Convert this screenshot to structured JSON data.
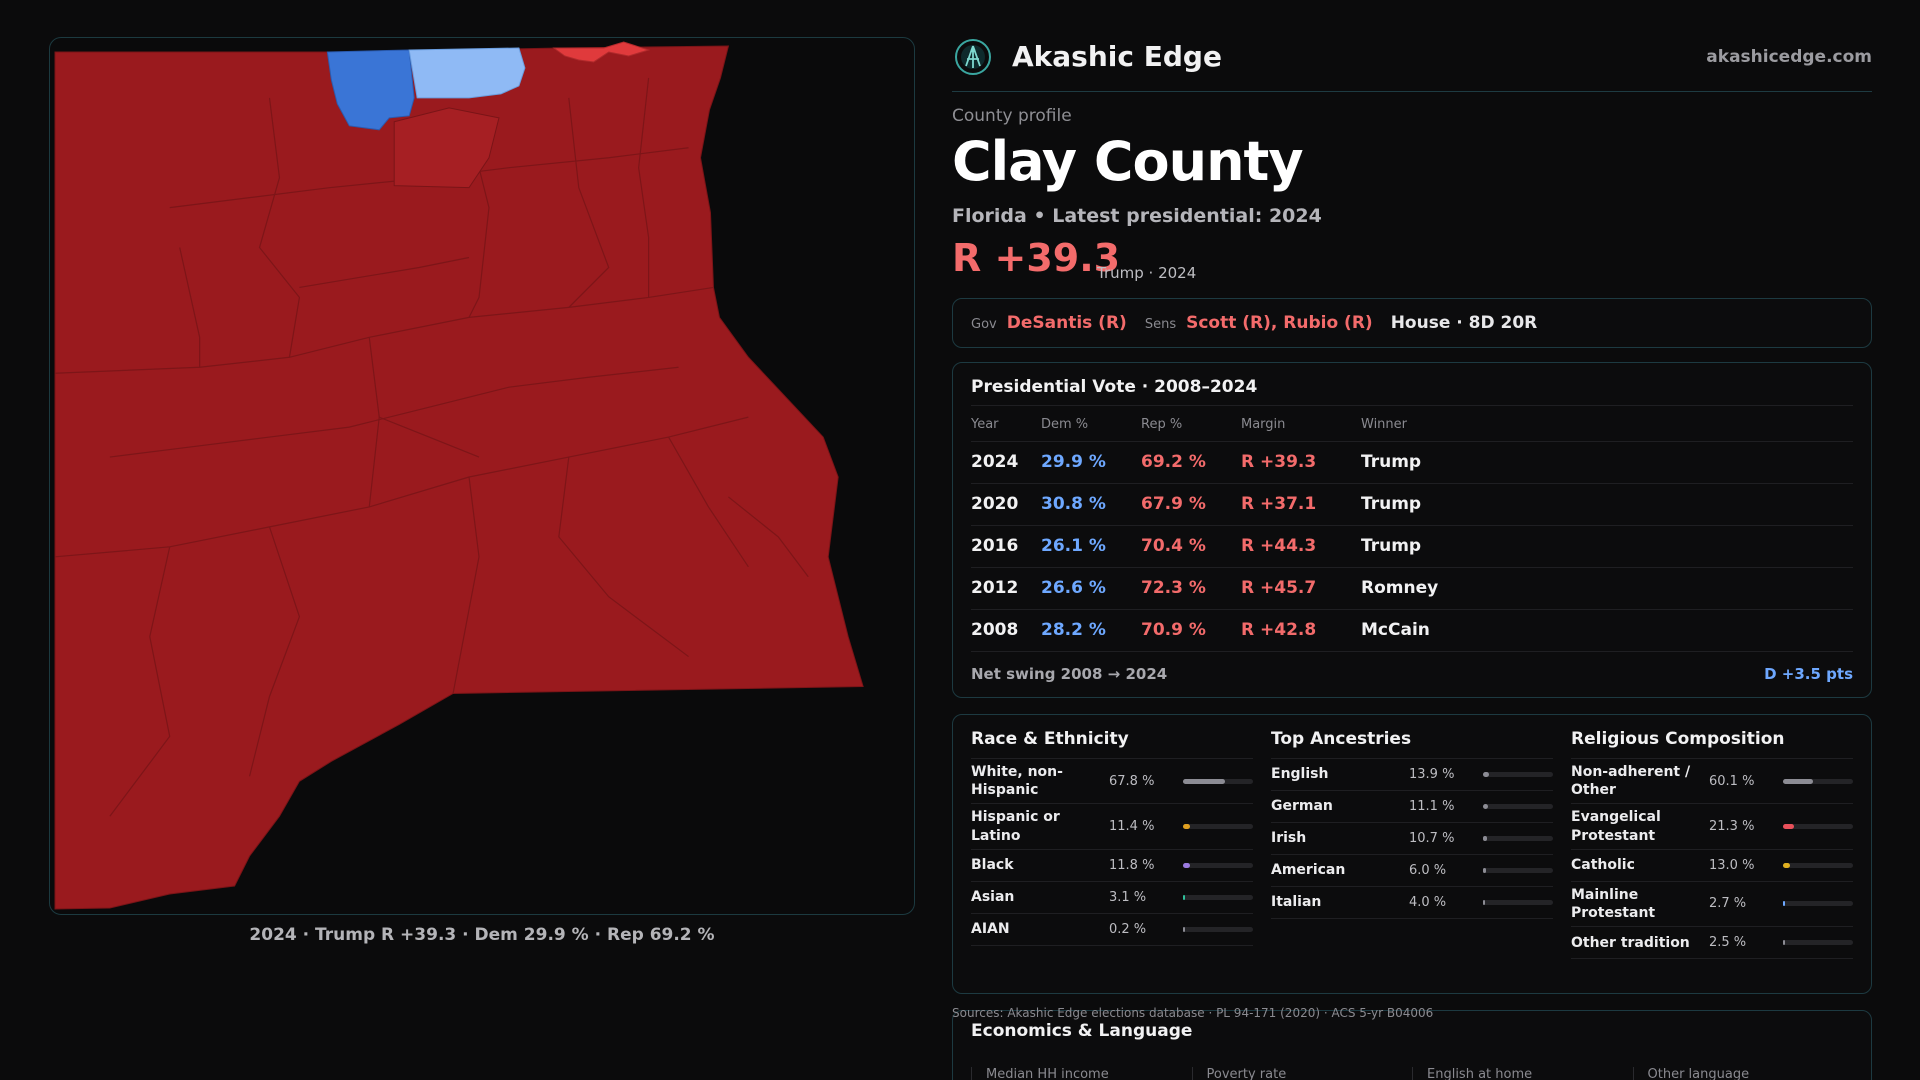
{
  "map": {
    "caption": "2024 · Trump R +39.3 · Dem 29.9 % · Rep 69.2 %",
    "colors": {
      "rep": "#9a1a1e",
      "rep_mid": "#a61f23",
      "rep_light": "#e03a3c",
      "dem": "#3a75d6",
      "dem_light": "#8fbaf5",
      "border": "#7a1417"
    }
  },
  "header": {
    "brand": "Akashic Edge",
    "site": "akashicedge.com"
  },
  "profile": {
    "eyebrow": "County profile",
    "title": "Clay County",
    "subtitle": "Florida • Latest presidential: 2024",
    "margin": "R +39.3",
    "margin_note": "Trump · 2024"
  },
  "officials": {
    "gov_label": "Gov",
    "gov": "DeSantis (R)",
    "sens_label": "Sens",
    "sens": "Scott (R), Rubio (R)",
    "house": "House · 8D 20R"
  },
  "votes": {
    "title": "Presidential Vote · 2008–2024",
    "headers": [
      "Year",
      "Dem %",
      "Rep %",
      "Margin",
      "Winner"
    ],
    "rows": [
      {
        "year": "2024",
        "dem": "29.9 %",
        "rep": "69.2 %",
        "margin": "R +39.3",
        "winner": "Trump"
      },
      {
        "year": "2020",
        "dem": "30.8 %",
        "rep": "67.9 %",
        "margin": "R +37.1",
        "winner": "Trump"
      },
      {
        "year": "2016",
        "dem": "26.1 %",
        "rep": "70.4 %",
        "margin": "R +44.3",
        "winner": "Trump"
      },
      {
        "year": "2012",
        "dem": "26.6 %",
        "rep": "72.3 %",
        "margin": "R +45.7",
        "winner": "Romney"
      },
      {
        "year": "2008",
        "dem": "28.2 %",
        "rep": "70.9 %",
        "margin": "R +42.8",
        "winner": "McCain"
      }
    ],
    "swing_label": "Net swing 2008 → 2024",
    "swing_value": "D +3.5 pts"
  },
  "race": {
    "title": "Race & Ethnicity",
    "items": [
      {
        "name": "White, non-Hispanic",
        "pct": "67.8 %",
        "value": 67.8,
        "color": "#8c8c94"
      },
      {
        "name": "Hispanic or Latino",
        "pct": "11.4 %",
        "value": 11.4,
        "color": "#e0a020"
      },
      {
        "name": "Black",
        "pct": "11.8 %",
        "value": 11.8,
        "color": "#9b7be0"
      },
      {
        "name": "Asian",
        "pct": "3.1 %",
        "value": 3.1,
        "color": "#2fbf9a"
      },
      {
        "name": "AIAN",
        "pct": "0.2 %",
        "value": 0.2,
        "color": "#8c8c94"
      }
    ]
  },
  "ancestry": {
    "title": "Top Ancestries",
    "items": [
      {
        "name": "English",
        "pct": "13.9 %",
        "value": 13.9,
        "color": "#8c8c94"
      },
      {
        "name": "German",
        "pct": "11.1 %",
        "value": 11.1,
        "color": "#8c8c94"
      },
      {
        "name": "Irish",
        "pct": "10.7 %",
        "value": 10.7,
        "color": "#8c8c94"
      },
      {
        "name": "American",
        "pct": "6.0 %",
        "value": 6.0,
        "color": "#8c8c94"
      },
      {
        "name": "Italian",
        "pct": "4.0 %",
        "value": 4.0,
        "color": "#8c8c94"
      }
    ]
  },
  "religion": {
    "title": "Religious Composition",
    "items": [
      {
        "name": "Non-adherent / Other",
        "pct": "60.1 %",
        "value": 60.1,
        "color": "#8c8c94"
      },
      {
        "name": "Evangelical Protestant",
        "pct": "21.3 %",
        "value": 21.3,
        "color": "#e8505a"
      },
      {
        "name": "Catholic",
        "pct": "13.0 %",
        "value": 13.0,
        "color": "#e0b020"
      },
      {
        "name": "Mainline Protestant",
        "pct": "2.7 %",
        "value": 2.7,
        "color": "#6ea8ff"
      },
      {
        "name": "Other tradition",
        "pct": "2.5 %",
        "value": 2.5,
        "color": "#8c8c94"
      }
    ]
  },
  "footer": {
    "sources": "Sources: Akashic Edge elections database · PL 94-171 (2020) · ACS 5-yr B04006",
    "econ_title": "Economics & Language",
    "econ_tiles": [
      "Median HH income",
      "Poverty rate",
      "English at home",
      "Other language"
    ]
  }
}
